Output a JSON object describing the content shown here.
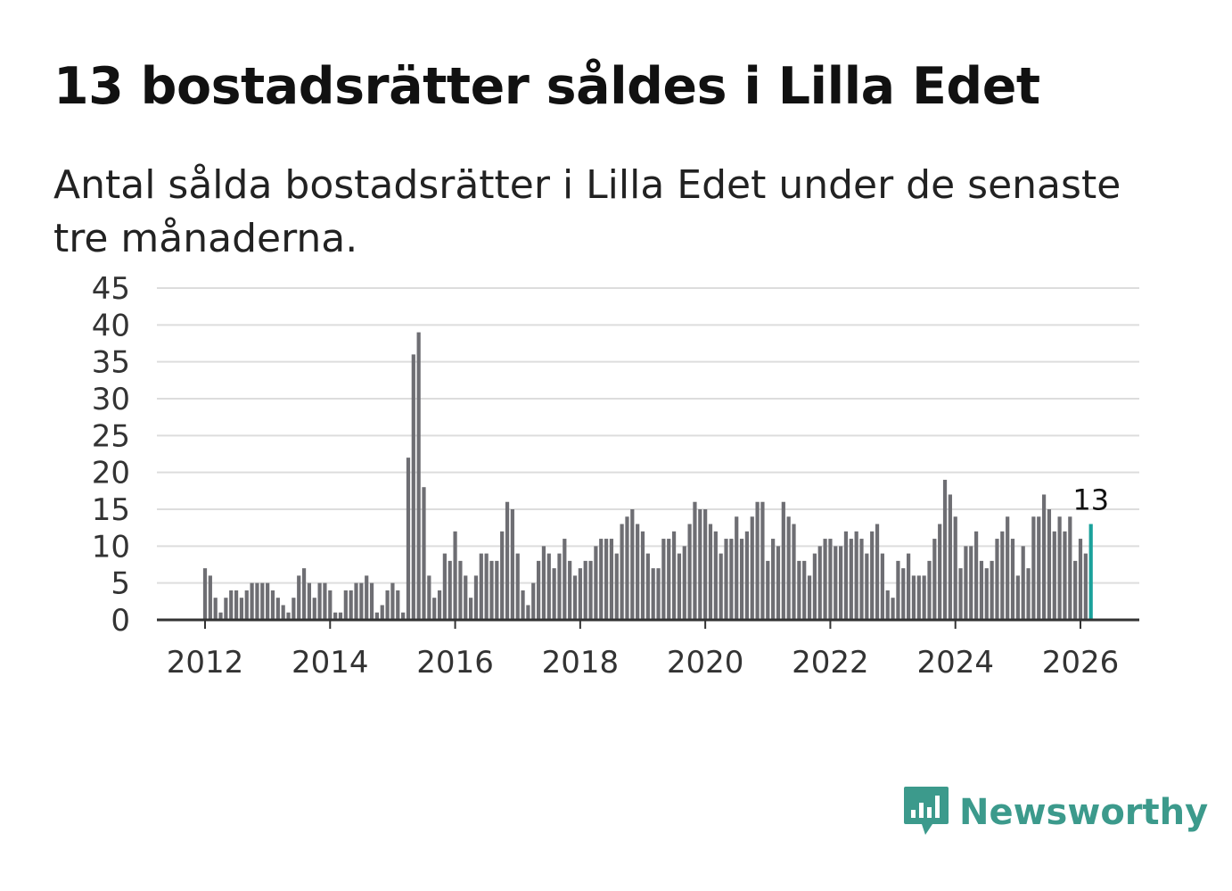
{
  "title": "13 bostadsrätter såldes i Lilla Edet",
  "subtitle": "Antal sålda bostadsrätter i Lilla Edet under de senaste tre månaderna.",
  "brand": {
    "name": "Newsworthy",
    "color": "#3c9a8c",
    "icon": "newsworthy-chat-bars-icon"
  },
  "colors": {
    "bar": "#6e6e73",
    "highlight": "#1aa19b",
    "grid": "#dddddd",
    "axis": "#333333"
  },
  "chart_data": {
    "type": "bar",
    "title": "13 bostadsrätter såldes i Lilla Edet",
    "xlabel": "",
    "ylabel": "",
    "ylim": [
      0,
      45
    ],
    "yticks": [
      "0",
      "5",
      "10",
      "15",
      "20",
      "25",
      "30",
      "35",
      "40",
      "45"
    ],
    "xticks": [
      "2012",
      "2014",
      "2016",
      "2018",
      "2020",
      "2022",
      "2024",
      "2026"
    ],
    "x_start": "2012-01",
    "x_end": "2026-03",
    "grid": true,
    "highlight_label": "13",
    "values": [
      7,
      6,
      3,
      1,
      3,
      4,
      4,
      3,
      4,
      5,
      5,
      5,
      5,
      4,
      3,
      2,
      1,
      3,
      6,
      7,
      5,
      3,
      5,
      5,
      4,
      1,
      1,
      4,
      4,
      5,
      5,
      6,
      5,
      1,
      2,
      4,
      5,
      4,
      1,
      22,
      36,
      39,
      18,
      6,
      3,
      4,
      9,
      8,
      12,
      8,
      6,
      3,
      6,
      9,
      9,
      8,
      8,
      12,
      16,
      15,
      9,
      4,
      2,
      5,
      8,
      10,
      9,
      7,
      9,
      11,
      8,
      6,
      7,
      8,
      8,
      10,
      11,
      11,
      11,
      9,
      13,
      14,
      15,
      13,
      12,
      9,
      7,
      7,
      11,
      11,
      12,
      9,
      10,
      13,
      16,
      15,
      15,
      13,
      12,
      9,
      11,
      11,
      14,
      11,
      12,
      14,
      16,
      16,
      8,
      11,
      10,
      16,
      14,
      13,
      8,
      8,
      6,
      9,
      10,
      11,
      11,
      10,
      10,
      12,
      11,
      12,
      11,
      9,
      12,
      13,
      9,
      4,
      3,
      8,
      7,
      9,
      6,
      6,
      6,
      8,
      11,
      13,
      19,
      17,
      14,
      7,
      10,
      10,
      12,
      8,
      7,
      8,
      11,
      12,
      14,
      11,
      6,
      10,
      7,
      14,
      14,
      17,
      15,
      12,
      14,
      12,
      14,
      8,
      11,
      9,
      13
    ]
  }
}
